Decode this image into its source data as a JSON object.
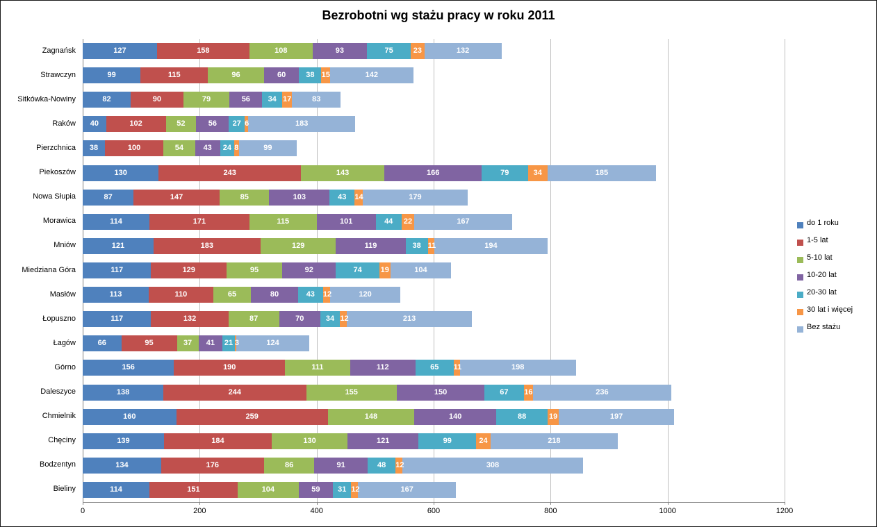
{
  "chart_data": {
    "type": "bar",
    "orientation": "horizontal",
    "stacked": true,
    "title": "Bezrobotni wg stażu pracy w roku 2011",
    "xlabel": "",
    "ylabel": "",
    "xlim": [
      0,
      1200
    ],
    "x_ticks": [
      0,
      200,
      400,
      600,
      800,
      1000,
      1200
    ],
    "grid": "vertical",
    "legend_position": "right",
    "data_labels": "inside-center-white-bold",
    "categories": [
      "Zagnańsk",
      "Strawczyn",
      "Sitkówka-Nowiny",
      "Raków",
      "Pierzchnica",
      "Piekoszów",
      "Nowa Słupia",
      "Morawica",
      "Mniów",
      "Miedziana Góra",
      "Masłów",
      "Łopuszno",
      "Łagów",
      "Górno",
      "Daleszyce",
      "Chmielnik",
      "Chęciny",
      "Bodzentyn",
      "Bieliny"
    ],
    "series": [
      {
        "name": "do 1 roku",
        "color": "#4F81BD",
        "values": [
          127,
          99,
          82,
          40,
          38,
          130,
          87,
          114,
          121,
          117,
          113,
          117,
          66,
          156,
          138,
          160,
          139,
          134,
          114
        ]
      },
      {
        "name": "1-5 lat",
        "color": "#C0504D",
        "values": [
          158,
          115,
          90,
          102,
          100,
          243,
          147,
          171,
          183,
          129,
          110,
          132,
          95,
          190,
          244,
          259,
          184,
          176,
          151
        ]
      },
      {
        "name": "5-10 lat",
        "color": "#9BBB59",
        "values": [
          108,
          96,
          79,
          52,
          54,
          143,
          85,
          115,
          129,
          95,
          65,
          87,
          37,
          111,
          155,
          148,
          130,
          86,
          104
        ]
      },
      {
        "name": "10-20 lat",
        "color": "#8064A2",
        "values": [
          93,
          60,
          56,
          56,
          43,
          166,
          103,
          101,
          119,
          92,
          80,
          70,
          41,
          112,
          150,
          140,
          121,
          91,
          59
        ]
      },
      {
        "name": "20-30 lat",
        "color": "#4BACC6",
        "values": [
          75,
          38,
          34,
          27,
          24,
          79,
          43,
          44,
          38,
          74,
          43,
          34,
          21,
          65,
          67,
          88,
          99,
          48,
          31
        ]
      },
      {
        "name": "30 lat i więcej",
        "color": "#F79646",
        "values": [
          23,
          15,
          17,
          6,
          8,
          34,
          14,
          22,
          11,
          19,
          12,
          12,
          3,
          11,
          16,
          19,
          24,
          12,
          12
        ]
      },
      {
        "name": "Bez stażu",
        "color": "#95B3D7",
        "values": [
          132,
          142,
          83,
          183,
          99,
          185,
          179,
          167,
          194,
          104,
          120,
          213,
          124,
          198,
          236,
          197,
          218,
          308,
          167
        ]
      }
    ],
    "colors": {
      "gridline": "#bfbfbf",
      "axis": "#808080",
      "title_text": "#000000",
      "data_label_text": "#ffffff"
    }
  }
}
